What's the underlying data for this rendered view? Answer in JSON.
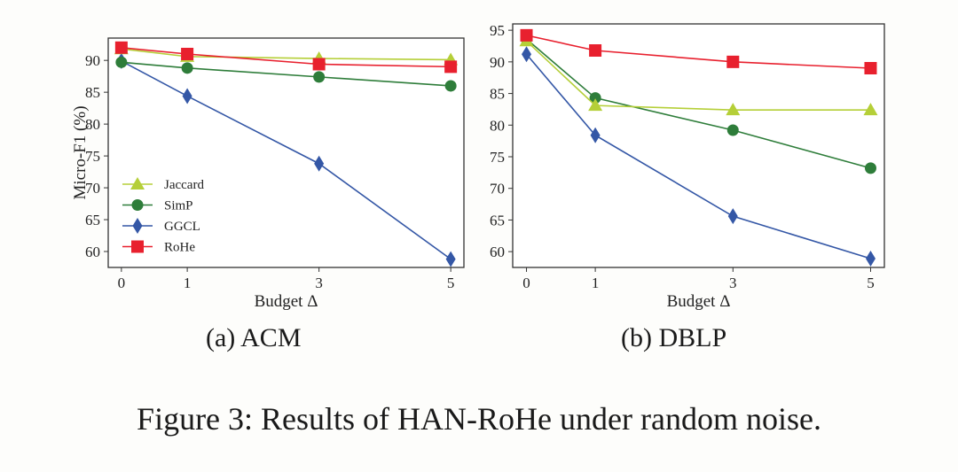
{
  "chart_data": [
    {
      "type": "line",
      "panel_label": "(a)  ACM",
      "xlabel": "Budget Δ",
      "ylabel": "Micro-F1 (%)",
      "x": [
        0,
        1,
        3,
        5
      ],
      "x_ticks": [
        "0",
        "1",
        "3",
        "5"
      ],
      "ylim": [
        57.5,
        93.5
      ],
      "y_ticks": [
        60,
        65,
        70,
        75,
        80,
        85,
        90
      ],
      "legend": "left",
      "series": [
        {
          "name": "Jaccard",
          "marker": "triangle",
          "color": "#b5cf38",
          "values": [
            91.8,
            90.6,
            90.3,
            90.1
          ]
        },
        {
          "name": "SimP",
          "marker": "circle",
          "color": "#2e7d3a",
          "values": [
            89.7,
            88.8,
            87.4,
            86.0
          ]
        },
        {
          "name": "GGCL",
          "marker": "diamond",
          "color": "#3457a6",
          "values": [
            89.9,
            84.4,
            73.8,
            58.8
          ]
        },
        {
          "name": "RoHe",
          "marker": "square",
          "color": "#e8202e",
          "values": [
            92.0,
            91.0,
            89.4,
            89.0
          ]
        }
      ]
    },
    {
      "type": "line",
      "panel_label": "(b)  DBLP",
      "xlabel": "Budget Δ",
      "ylabel": "",
      "x": [
        0,
        1,
        3,
        5
      ],
      "x_ticks": [
        "0",
        "1",
        "3",
        "5"
      ],
      "ylim": [
        57.5,
        96
      ],
      "y_ticks": [
        60,
        65,
        70,
        75,
        80,
        85,
        90,
        95
      ],
      "series": [
        {
          "name": "Jaccard",
          "marker": "triangle",
          "color": "#b5cf38",
          "values": [
            93.3,
            83.1,
            82.4,
            82.4
          ]
        },
        {
          "name": "SimP",
          "marker": "circle",
          "color": "#2e7d3a",
          "values": [
            93.6,
            84.3,
            79.2,
            73.2
          ]
        },
        {
          "name": "GGCL",
          "marker": "diamond",
          "color": "#3457a6",
          "values": [
            91.2,
            78.4,
            65.6,
            58.9
          ]
        },
        {
          "name": "RoHe",
          "marker": "square",
          "color": "#e8202e",
          "values": [
            94.2,
            91.8,
            90.0,
            89.0
          ]
        }
      ]
    }
  ],
  "caption": "Figure 3: Results of HAN-RoHe under random noise."
}
